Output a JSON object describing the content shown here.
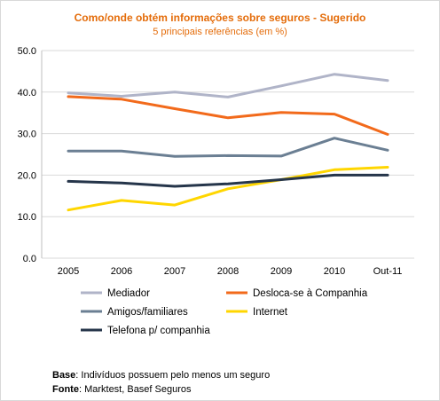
{
  "chart_data": {
    "type": "line",
    "title": "Como/onde obtém informações sobre seguros - Sugerido",
    "subtitle": "5 principais referências (em %)",
    "categories": [
      "2005",
      "2006",
      "2007",
      "2008",
      "2009",
      "2010",
      "Out-11"
    ],
    "ylim": [
      0,
      50
    ],
    "yticks": [
      "0.0",
      "10.0",
      "20.0",
      "30.0",
      "40.0",
      "50.0"
    ],
    "grid": true,
    "legend_position": "bottom",
    "series": [
      {
        "name": "Mediador",
        "color": "#b0b4c8",
        "values": [
          39.8,
          39.0,
          40.0,
          38.8,
          41.5,
          44.3,
          42.8
        ]
      },
      {
        "name": "Desloca-se à Companhia",
        "color": "#f26a1b",
        "values": [
          38.9,
          38.3,
          36.0,
          33.8,
          35.1,
          34.7,
          29.8
        ]
      },
      {
        "name": "Amigos/familiares",
        "color": "#6b7f93",
        "values": [
          25.8,
          25.8,
          24.5,
          24.7,
          24.6,
          28.9,
          26.0
        ]
      },
      {
        "name": "Internet",
        "color": "#ffd600",
        "values": [
          11.6,
          13.9,
          12.8,
          16.7,
          18.9,
          21.3,
          21.9
        ]
      },
      {
        "name": "Telefona p/ companhia",
        "color": "#25354a",
        "values": [
          18.5,
          18.1,
          17.3,
          17.9,
          18.9,
          20.0,
          20.0
        ]
      }
    ]
  },
  "notes": {
    "base_label": "Base",
    "base_text": ": Indivíduos possuem pelo menos um seguro",
    "fonte_label": "Fonte",
    "fonte_text": ": Marktest, Basef Seguros"
  }
}
